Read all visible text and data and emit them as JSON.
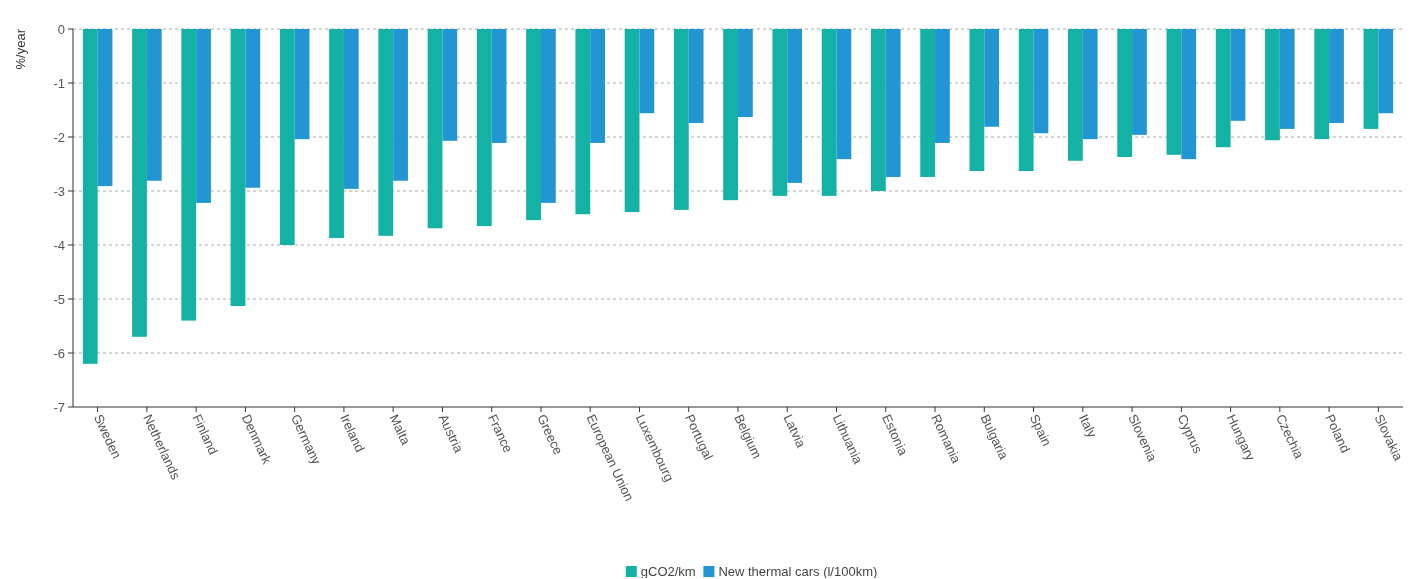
{
  "chart_data": {
    "type": "bar",
    "ylabel": "%/year",
    "categories": [
      "Sweden",
      "Netherlands",
      "Finland",
      "Denmark",
      "Germany",
      "Ireland",
      "Malta",
      "Austria",
      "France",
      "Greece",
      "European Union",
      "Luxembourg",
      "Portugal",
      "Belgium",
      "Latvia",
      "Lithuania",
      "Estonia",
      "Romania",
      "Bulgaria",
      "Spain",
      "Italy",
      "Slovenia",
      "Cyprus",
      "Hungary",
      "Czechia",
      "Poland",
      "Slovakia"
    ],
    "series": [
      {
        "name": "gCO2/km",
        "color": "#14b1a5",
        "values": [
          -6.2,
          -5.7,
          -5.4,
          -5.13,
          -4.0,
          -3.87,
          -3.83,
          -3.69,
          -3.65,
          -3.54,
          -3.43,
          -3.39,
          -3.35,
          -3.17,
          -3.09,
          -3.09,
          -3.0,
          -2.74,
          -2.63,
          -2.63,
          -2.44,
          -2.37,
          -2.33,
          -2.19,
          -2.06,
          -2.04,
          -1.85
        ]
      },
      {
        "name": "New thermal cars (l/100km)",
        "color": "#2196d3",
        "values": [
          -2.91,
          -2.81,
          -3.22,
          -2.94,
          -2.04,
          -2.96,
          -2.81,
          -2.07,
          -2.11,
          -3.22,
          -2.11,
          -1.56,
          -1.74,
          -1.63,
          -2.85,
          -2.41,
          -2.74,
          -2.11,
          -1.81,
          -1.93,
          -2.04,
          -1.96,
          -2.41,
          -1.7,
          -1.85,
          -1.74,
          -1.56
        ]
      }
    ],
    "ylim": [
      -7,
      0
    ],
    "yticks": [
      -7,
      -6,
      -5,
      -4,
      -3,
      -2,
      -1,
      0
    ],
    "grid": "y",
    "legend": "bottom"
  }
}
